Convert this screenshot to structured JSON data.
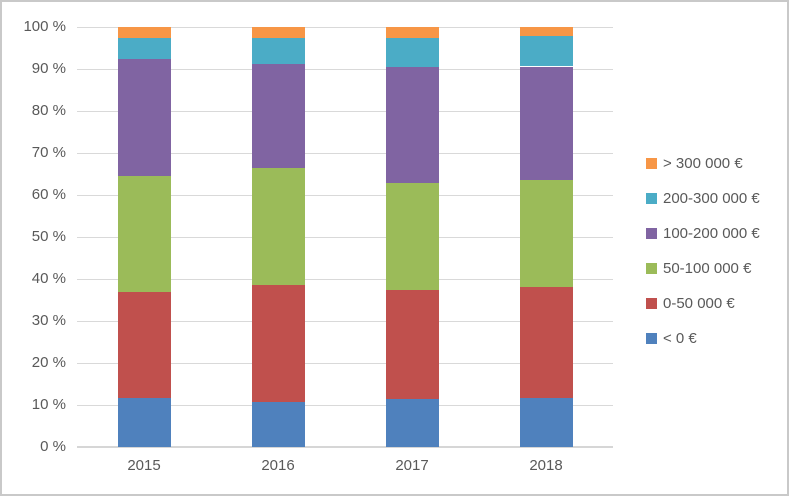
{
  "chart_data": {
    "type": "bar",
    "subtype": "stacked-100-percent",
    "title": "",
    "xlabel": "",
    "ylabel": "",
    "grid": true,
    "legend_position": "right",
    "categories": [
      "2015",
      "2016",
      "2017",
      "2018"
    ],
    "series": [
      {
        "name": "< 0 €",
        "color": "#4F81BD",
        "values": [
          11.7,
          10.8,
          11.4,
          11.7
        ]
      },
      {
        "name": "0-50 000 €",
        "color": "#C0504D",
        "values": [
          25.2,
          27.8,
          26.0,
          26.4
        ]
      },
      {
        "name": "50-100 000 €",
        "color": "#9BBB59",
        "values": [
          27.6,
          27.8,
          25.5,
          25.5
        ]
      },
      {
        "name": "100-200 000 €",
        "color": "#8064A2",
        "values": [
          27.8,
          24.8,
          27.6,
          27.0
        ]
      },
      {
        "name": "200-300 000 €",
        "color": "#4BACC6",
        "values": [
          5.2,
          6.2,
          6.9,
          7.2
        ]
      },
      {
        "name": "> 300 000 €",
        "color": "#F79646",
        "values": [
          2.5,
          2.6,
          2.6,
          2.2
        ]
      }
    ],
    "y_axis": {
      "range": [
        0,
        100
      ],
      "ticks": [
        {
          "value": 0,
          "label": "0 %"
        },
        {
          "value": 10,
          "label": "10 %"
        },
        {
          "value": 20,
          "label": "20 %"
        },
        {
          "value": 30,
          "label": "30 %"
        },
        {
          "value": 40,
          "label": "40 %"
        },
        {
          "value": 50,
          "label": "50 %"
        },
        {
          "value": 60,
          "label": "60 %"
        },
        {
          "value": 70,
          "label": "70 %"
        },
        {
          "value": 80,
          "label": "80 %"
        },
        {
          "value": 90,
          "label": "90 %"
        },
        {
          "value": 100,
          "label": "100 %"
        }
      ]
    },
    "colors": {
      "gridline": "#D9D9D9",
      "axis_text": "#595959",
      "frame_border": "#C9C9C9",
      "background": "#FFFFFF"
    }
  }
}
